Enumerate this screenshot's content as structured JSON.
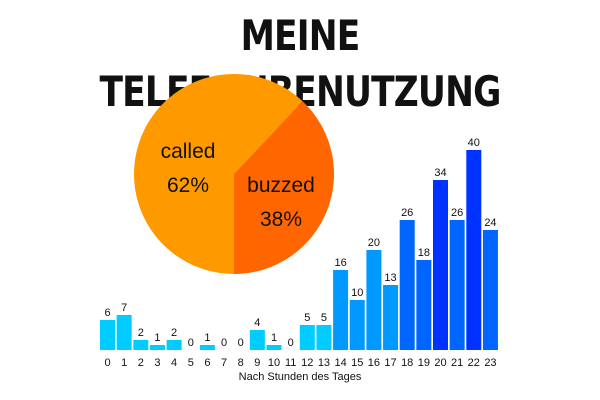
{
  "chart_data": [
    {
      "type": "pie",
      "title": "MEINE TELEFONBENUTZUNG",
      "slices": [
        {
          "label": "called",
          "value": 62,
          "value_label": "62%",
          "color": "#ff9900"
        },
        {
          "label": "buzzed",
          "value": 38,
          "value_label": "38%",
          "color": "#ff6600"
        }
      ]
    },
    {
      "type": "bar",
      "categories": [
        "0",
        "1",
        "2",
        "3",
        "4",
        "5",
        "6",
        "7",
        "8",
        "9",
        "10",
        "11",
        "12",
        "13",
        "14",
        "15",
        "16",
        "17",
        "18",
        "19",
        "20",
        "21",
        "22",
        "23"
      ],
      "values": [
        6,
        7,
        2,
        1,
        2,
        0,
        1,
        0,
        0,
        4,
        1,
        0,
        5,
        5,
        16,
        10,
        20,
        13,
        26,
        18,
        34,
        26,
        40,
        24
      ],
      "colors": [
        "#00ccff",
        "#00ccff",
        "#00ccff",
        "#00ccff",
        "#00ccff",
        "#00ccff",
        "#00ccff",
        "#00ccff",
        "#00ccff",
        "#00ccff",
        "#00ccff",
        "#00ccff",
        "#00ccff",
        "#00ccff",
        "#0099ff",
        "#0099ff",
        "#0099ff",
        "#0099ff",
        "#0066ff",
        "#0066ff",
        "#0033ff",
        "#0066ff",
        "#0033ff",
        "#0066ff"
      ],
      "xlabel": "Nach Stunden des Tages",
      "ylabel": "",
      "ylim": [
        0,
        40
      ],
      "grid": false
    }
  ]
}
